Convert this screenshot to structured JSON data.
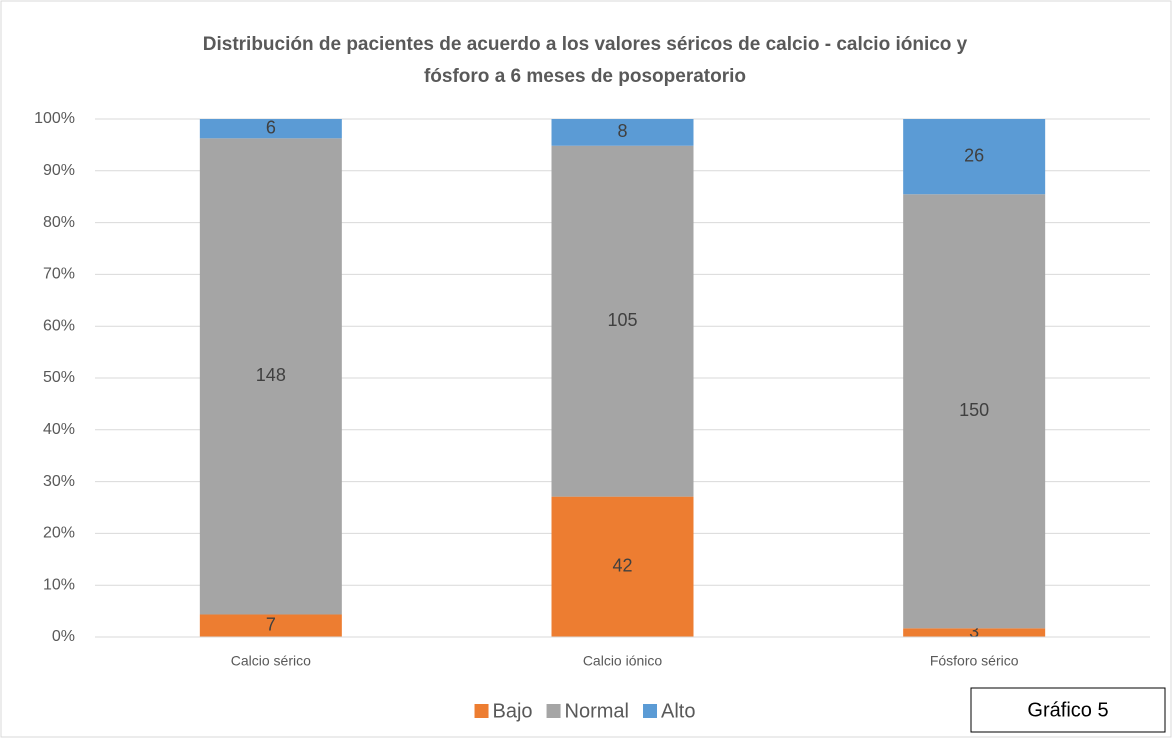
{
  "chart_data": {
    "type": "bar",
    "stacking": "percent",
    "title": [
      "Distribución de pacientes de acuerdo a los valores séricos de calcio - calcio iónico y",
      "fósforo a 6 meses de posoperatorio"
    ],
    "categories": [
      "Calcio sérico",
      "Calcio iónico",
      "Fósforo sérico"
    ],
    "series": [
      {
        "name": "Bajo",
        "color": "#ed7d31",
        "values": [
          7,
          42,
          3
        ]
      },
      {
        "name": "Normal",
        "color": "#a5a5a5",
        "values": [
          148,
          105,
          150
        ]
      },
      {
        "name": "Alto",
        "color": "#5b9bd5",
        "values": [
          6,
          8,
          26
        ]
      }
    ],
    "ylim": [
      0,
      100
    ],
    "yticks": [
      {
        "value": 0,
        "label": "0%"
      },
      {
        "value": 10,
        "label": "10%"
      },
      {
        "value": 20,
        "label": "20%"
      },
      {
        "value": 30,
        "label": "30%"
      },
      {
        "value": 40,
        "label": "40%"
      },
      {
        "value": 50,
        "label": "50%"
      },
      {
        "value": 60,
        "label": "60%"
      },
      {
        "value": 70,
        "label": "70%"
      },
      {
        "value": 80,
        "label": "80%"
      },
      {
        "value": 90,
        "label": "90%"
      },
      {
        "value": 100,
        "label": "100%"
      }
    ],
    "grid": true,
    "legend": "bottom",
    "note": "Gráfico 5"
  }
}
